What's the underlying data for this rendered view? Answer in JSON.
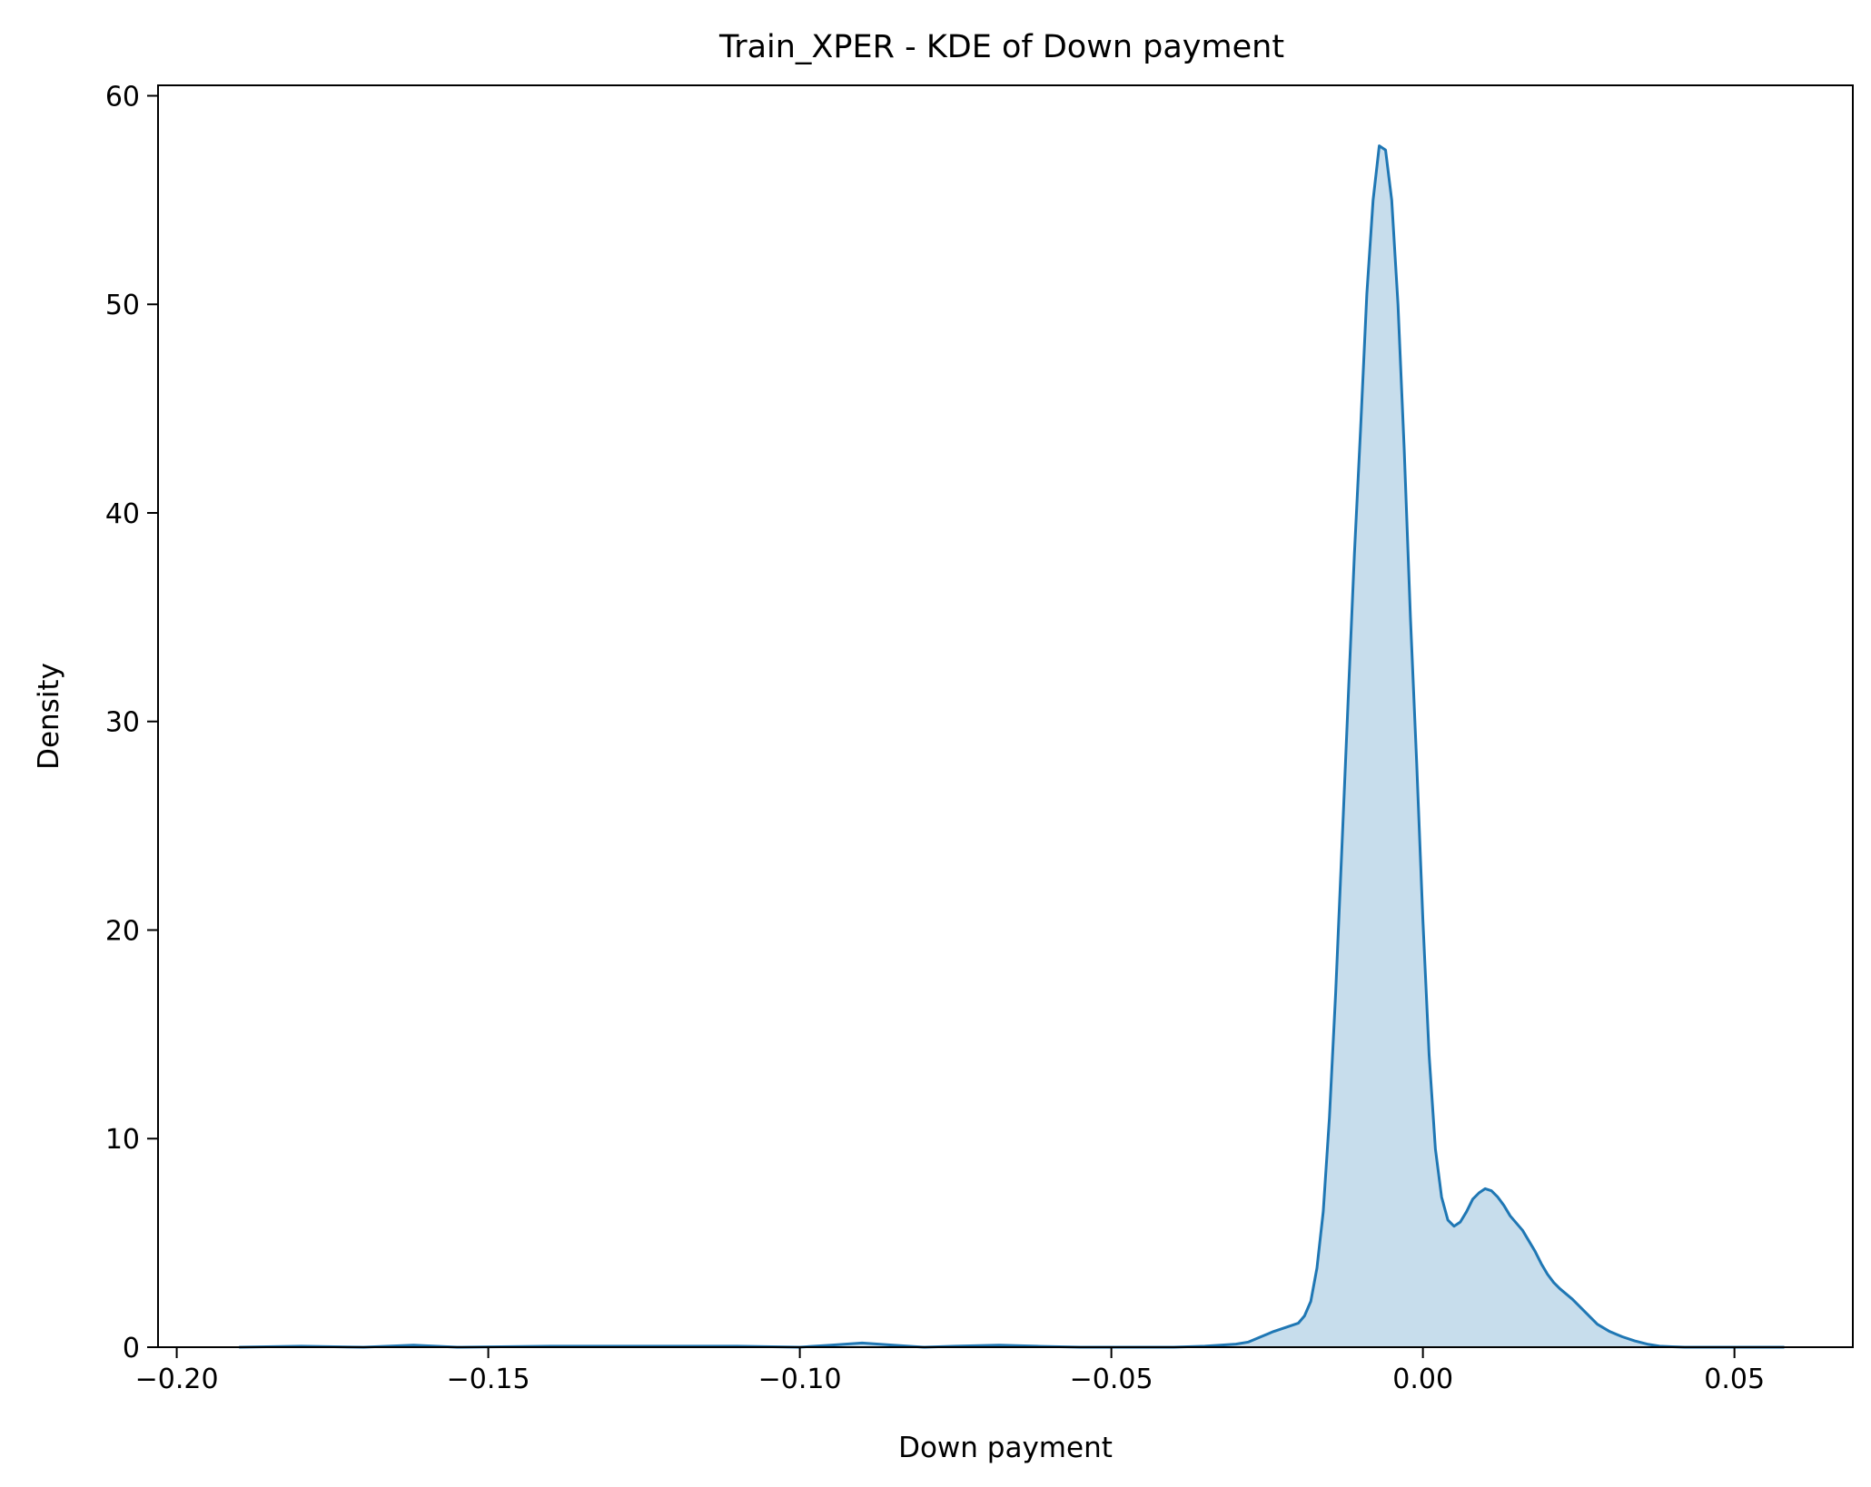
{
  "chart_data": {
    "type": "area",
    "title": "Train_XPER - KDE of Down payment",
    "xlabel": "Down payment",
    "ylabel": "Density",
    "xlim": [
      -0.203,
      0.069
    ],
    "ylim": [
      0,
      60.5
    ],
    "x_ticks": [
      -0.2,
      -0.15,
      -0.1,
      -0.05,
      0.0,
      0.05
    ],
    "x_tick_labels": [
      "−0.20",
      "−0.15",
      "−0.10",
      "−0.05",
      "0.00",
      "0.05"
    ],
    "y_ticks": [
      0,
      10,
      20,
      30,
      40,
      50,
      60
    ],
    "y_tick_labels": [
      "0",
      "10",
      "20",
      "30",
      "40",
      "50",
      "60"
    ],
    "grid": false,
    "line_color": "#1f77b4",
    "fill_color": "#1f77b4",
    "fill_opacity": 0.25,
    "series": [
      {
        "x": [
          -0.19,
          -0.18,
          -0.17,
          -0.162,
          -0.155,
          -0.14,
          -0.13,
          -0.12,
          -0.11,
          -0.1,
          -0.095,
          -0.09,
          -0.085,
          -0.08,
          -0.075,
          -0.068,
          -0.062,
          -0.055,
          -0.045,
          -0.04,
          -0.035,
          -0.03,
          -0.028,
          -0.026,
          -0.024,
          -0.022,
          -0.02,
          -0.019,
          -0.018,
          -0.017,
          -0.016,
          -0.015,
          -0.014,
          -0.013,
          -0.012,
          -0.011,
          -0.01,
          -0.009,
          -0.008,
          -0.007,
          -0.006,
          -0.005,
          -0.004,
          -0.003,
          -0.002,
          -0.001,
          0.0,
          0.001,
          0.002,
          0.003,
          0.004,
          0.005,
          0.006,
          0.007,
          0.008,
          0.009,
          0.01,
          0.011,
          0.012,
          0.013,
          0.014,
          0.016,
          0.018,
          0.019,
          0.02,
          0.021,
          0.022,
          0.024,
          0.026,
          0.028,
          0.03,
          0.032,
          0.034,
          0.036,
          0.038,
          0.04,
          0.042,
          0.044,
          0.046,
          0.048,
          0.05,
          0.052,
          0.054,
          0.056,
          0.058
        ],
        "y": [
          0.0,
          0.05,
          0.0,
          0.1,
          0.0,
          0.05,
          0.05,
          0.05,
          0.05,
          0.0,
          0.1,
          0.2,
          0.1,
          0.0,
          0.05,
          0.1,
          0.05,
          0.0,
          0.0,
          0.0,
          0.05,
          0.15,
          0.25,
          0.5,
          0.75,
          0.95,
          1.15,
          1.5,
          2.2,
          3.8,
          6.5,
          11.0,
          17.0,
          24.0,
          31.0,
          38.0,
          44.0,
          50.5,
          55.0,
          57.6,
          57.4,
          55.0,
          50.0,
          43.0,
          35.0,
          28.0,
          20.5,
          14.0,
          9.5,
          7.2,
          6.1,
          5.8,
          6.0,
          6.5,
          7.1,
          7.4,
          7.6,
          7.5,
          7.2,
          6.8,
          6.3,
          5.6,
          4.6,
          4.0,
          3.5,
          3.1,
          2.8,
          2.3,
          1.7,
          1.1,
          0.75,
          0.5,
          0.3,
          0.15,
          0.05,
          0.02,
          0.0,
          0.0,
          0.0,
          0.0,
          0.0,
          0.0,
          0.0,
          0.0,
          0.0
        ]
      }
    ]
  }
}
